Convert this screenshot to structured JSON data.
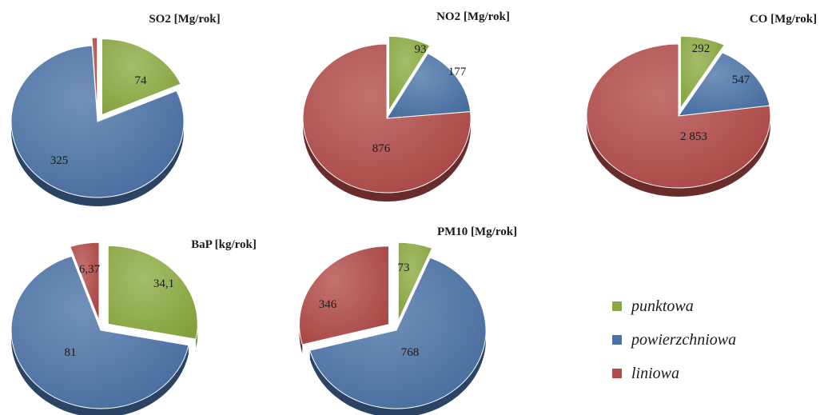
{
  "chart_data": [
    {
      "type": "pie",
      "title": "SO2 [Mg/rok]",
      "slices": [
        {
          "category": "punktowa",
          "value": 74,
          "label": "74"
        },
        {
          "category": "powierzchniowa",
          "value": 325,
          "label": "325"
        },
        {
          "category": "liniowa",
          "value": 4,
          "label": ""
        }
      ]
    },
    {
      "type": "pie",
      "title": "NO2 [Mg/rok]",
      "slices": [
        {
          "category": "punktowa",
          "value": 93,
          "label": "93"
        },
        {
          "category": "powierzchniowa",
          "value": 177,
          "label": "177"
        },
        {
          "category": "liniowa",
          "value": 876,
          "label": "876"
        }
      ]
    },
    {
      "type": "pie",
      "title": "CO [Mg/rok]",
      "slices": [
        {
          "category": "punktowa",
          "value": 292,
          "label": "292"
        },
        {
          "category": "powierzchniowa",
          "value": 547,
          "label": "547"
        },
        {
          "category": "liniowa",
          "value": 2853,
          "label": "2 853"
        }
      ]
    },
    {
      "type": "pie",
      "title": "BaP [kg/rok]",
      "slices": [
        {
          "category": "punktowa",
          "value": 34.1,
          "label": "34,1"
        },
        {
          "category": "powierzchniowa",
          "value": 81,
          "label": "81"
        },
        {
          "category": "liniowa",
          "value": 6.37,
          "label": "6,37"
        }
      ]
    },
    {
      "type": "pie",
      "title": "PM10 [Mg/rok]",
      "slices": [
        {
          "category": "punktowa",
          "value": 73,
          "label": "73"
        },
        {
          "category": "powierzchniowa",
          "value": 768,
          "label": "768"
        },
        {
          "category": "liniowa",
          "value": 346,
          "label": "346"
        }
      ]
    }
  ],
  "legend": [
    {
      "key": "punktowa",
      "label": "punktowa",
      "color": "#8aaa3f"
    },
    {
      "key": "powierzchniowa",
      "label": "powierzchniowa",
      "color": "#4a72a6"
    },
    {
      "key": "liniowa",
      "label": "liniowa",
      "color": "#b14a48"
    }
  ]
}
